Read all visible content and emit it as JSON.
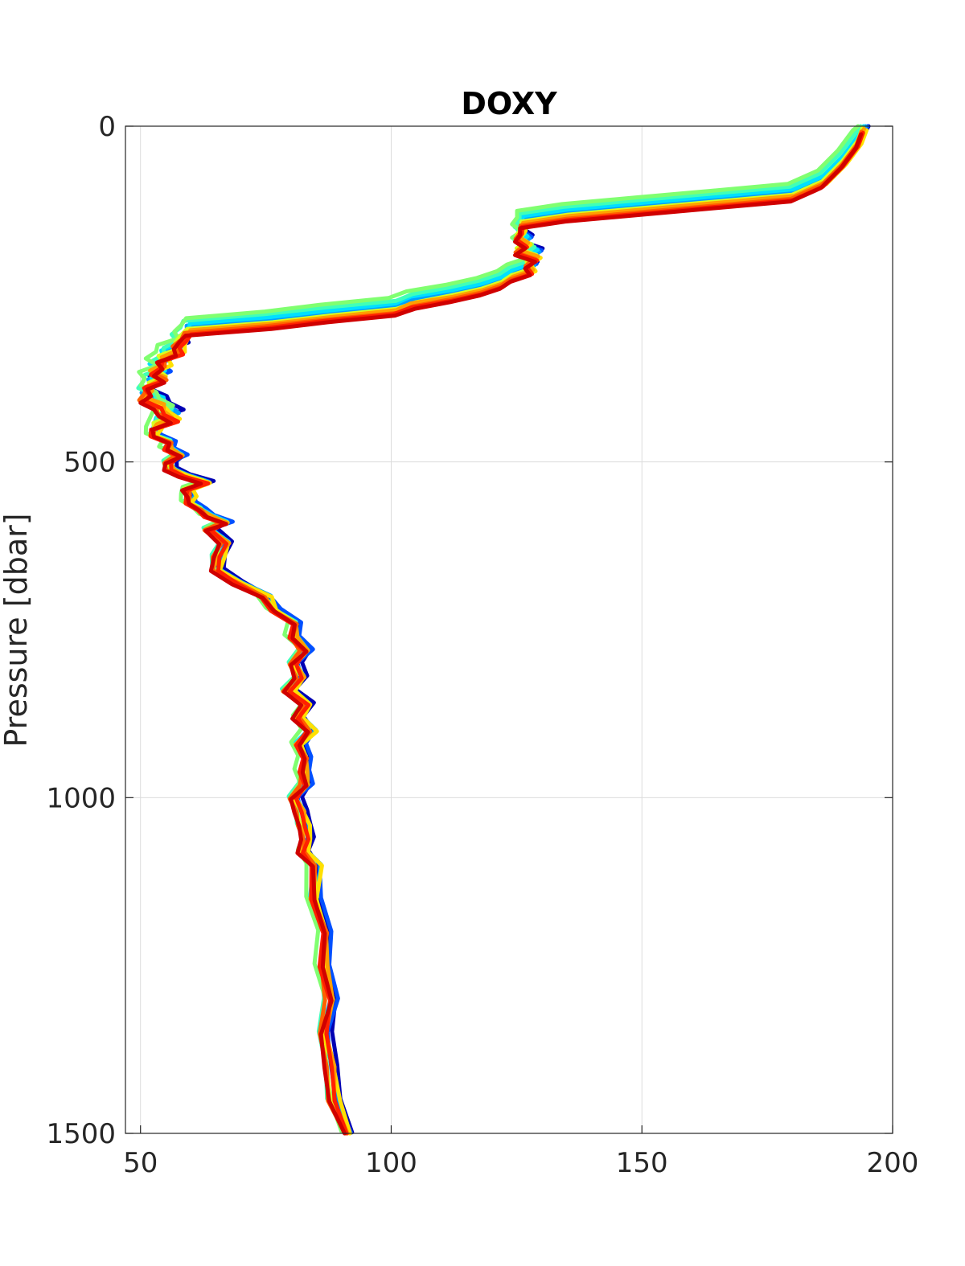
{
  "chart_data": {
    "type": "line",
    "title": "DOXY",
    "xlabel": "",
    "ylabel": "Pressure [dbar]",
    "xlim": [
      47,
      200
    ],
    "ylim": [
      1500,
      0
    ],
    "y_reversed": true,
    "grid": true,
    "x_ticks": [
      "50",
      "100",
      "150",
      "200"
    ],
    "y_ticks": [
      "0",
      "500",
      "1000",
      "1500"
    ],
    "x_tick_values": [
      50,
      100,
      150,
      200
    ],
    "y_tick_values": [
      0,
      500,
      1000,
      1500
    ],
    "base_profile": {
      "pressure": [
        0,
        20,
        50,
        80,
        100,
        110,
        120,
        130,
        140,
        150,
        160,
        170,
        175,
        180,
        190,
        200,
        210,
        220,
        230,
        240,
        250,
        260,
        270,
        280,
        290,
        300,
        310,
        320,
        330,
        340,
        350,
        360,
        370,
        380,
        390,
        400,
        410,
        420,
        430,
        440,
        450,
        460,
        470,
        480,
        490,
        500,
        510,
        520,
        530,
        540,
        550,
        560,
        570,
        580,
        590,
        600,
        620,
        640,
        660,
        680,
        700,
        720,
        740,
        760,
        780,
        800,
        820,
        840,
        860,
        880,
        900,
        920,
        940,
        960,
        980,
        1000,
        1020,
        1040,
        1060,
        1080,
        1100,
        1150,
        1200,
        1250,
        1300,
        1350,
        1400,
        1450,
        1500
      ],
      "doxy": [
        194,
        193,
        190,
        186,
        180,
        165,
        150,
        135,
        126,
        126,
        125,
        127,
        126,
        125,
        129,
        127,
        128,
        124,
        122,
        118,
        112,
        105,
        100,
        88,
        75,
        60,
        58,
        58,
        57,
        55,
        54,
        53,
        54,
        52,
        51,
        51,
        53,
        55,
        56,
        54,
        52,
        53,
        55,
        56,
        57,
        56,
        55,
        59,
        62,
        60,
        59,
        60,
        61,
        64,
        66,
        64,
        66,
        66,
        64,
        70,
        74,
        77,
        80,
        81,
        82,
        81,
        81,
        80,
        82,
        82,
        83,
        82,
        82,
        83,
        82,
        81,
        81,
        83,
        82,
        83,
        84,
        85,
        86,
        87,
        87,
        87,
        87,
        89,
        91
      ]
    },
    "series": [
      {
        "color": "#0000b4",
        "dx": 1.2,
        "dp": -8
      },
      {
        "color": "#0050ff",
        "dx": 1.0,
        "dp": -5
      },
      {
        "color": "#00a0ff",
        "dx": 0.6,
        "dp": -3
      },
      {
        "color": "#00e0ff",
        "dx": 0.2,
        "dp": -6
      },
      {
        "color": "#40ffb8",
        "dx": -0.4,
        "dp": -10
      },
      {
        "color": "#80ff70",
        "dx": -0.9,
        "dp": -14
      },
      {
        "color": "#d8ff20",
        "dx": 0.0,
        "dp": 2
      },
      {
        "color": "#ffe000",
        "dx": 0.8,
        "dp": 6
      },
      {
        "color": "#ffa000",
        "dx": 0.3,
        "dp": 4
      },
      {
        "color": "#ff6000",
        "dx": -0.2,
        "dp": 8
      },
      {
        "color": "#ff2000",
        "dx": 0.1,
        "dp": 10
      },
      {
        "color": "#d00000",
        "dx": -0.3,
        "dp": 12
      }
    ]
  }
}
